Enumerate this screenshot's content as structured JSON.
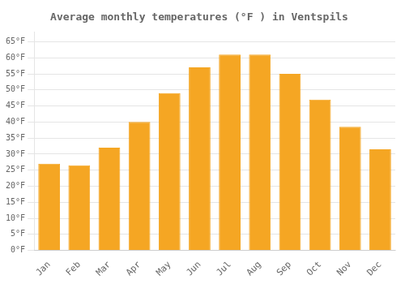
{
  "chart_data": {
    "type": "bar",
    "title": "Average monthly temperatures (°F ) in Ventspils",
    "categories": [
      "Jan",
      "Feb",
      "Mar",
      "Apr",
      "May",
      "Jun",
      "Jul",
      "Aug",
      "Sep",
      "Oct",
      "Nov",
      "Dec"
    ],
    "values": [
      27,
      26.5,
      32,
      40,
      49,
      57,
      61,
      61,
      55,
      47,
      38.5,
      31.5
    ],
    "color": "#F5A623",
    "ylim": [
      0,
      68
    ],
    "yticks": [
      {
        "value": 0,
        "label": "0°F"
      },
      {
        "value": 5,
        "label": "5°F"
      },
      {
        "value": 10,
        "label": "10°F"
      },
      {
        "value": 15,
        "label": "15°F"
      },
      {
        "value": 20,
        "label": "20°F"
      },
      {
        "value": 25,
        "label": "25°F"
      },
      {
        "value": 30,
        "label": "30°F"
      },
      {
        "value": 35,
        "label": "35°F"
      },
      {
        "value": 40,
        "label": "40°F"
      },
      {
        "value": 45,
        "label": "45°F"
      },
      {
        "value": 50,
        "label": "50°F"
      },
      {
        "value": 55,
        "label": "55°F"
      },
      {
        "value": 60,
        "label": "60°F"
      },
      {
        "value": 65,
        "label": "65°F"
      }
    ],
    "grid": true
  }
}
